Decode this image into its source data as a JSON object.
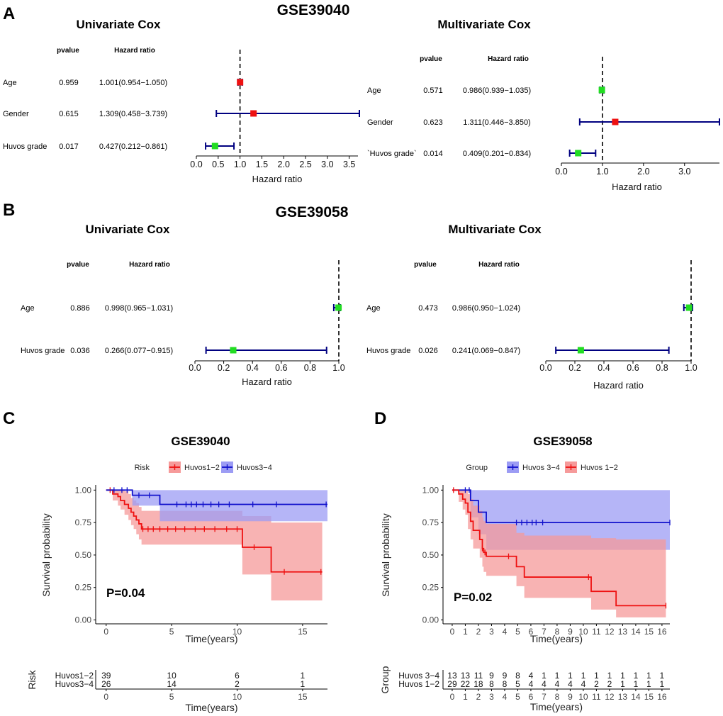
{
  "panels": {
    "A": {
      "letter": "A",
      "title": "GSE39040"
    },
    "B": {
      "letter": "B",
      "title": "GSE39058"
    },
    "C": {
      "letter": "C"
    },
    "D": {
      "letter": "D"
    }
  },
  "chart_data": [
    {
      "id": "A-uni",
      "type": "forest",
      "dataset": "GSE39040",
      "title": "Univariate Cox",
      "col_pvalue": "pvalue",
      "col_hr": "Hazard ratio",
      "xlabel": "Hazard ratio",
      "xlim": [
        0,
        3.7
      ],
      "ref_line": 1.0,
      "xticks": [
        {
          "v": 0,
          "t": "0.0"
        },
        {
          "v": 0.5,
          "t": "0.5"
        },
        {
          "v": 1,
          "t": "1.0"
        },
        {
          "v": 1.5,
          "t": "1.5"
        },
        {
          "v": 2,
          "t": "2.0"
        },
        {
          "v": 2.5,
          "t": "2.5"
        },
        {
          "v": 3,
          "t": "3.0"
        },
        {
          "v": 3.5,
          "t": "3.5"
        }
      ],
      "rows": [
        {
          "label": "Age",
          "pvalue": "0.959",
          "hr_text": "1.001(0.954−1.050)",
          "hr": 1.001,
          "lo": 0.954,
          "hi": 1.05,
          "color": "#ee1111"
        },
        {
          "label": "Gender",
          "pvalue": "0.615",
          "hr_text": "1.309(0.458−3.739)",
          "hr": 1.309,
          "lo": 0.458,
          "hi": 3.739,
          "color": "#ee1111"
        },
        {
          "label": "Huvos grade",
          "pvalue": "0.017",
          "hr_text": "0.427(0.212−0.861)",
          "hr": 0.427,
          "lo": 0.212,
          "hi": 0.861,
          "color": "#22dd22"
        }
      ]
    },
    {
      "id": "A-multi",
      "type": "forest",
      "dataset": "GSE39040",
      "title": "Multivariate Cox",
      "col_pvalue": "pvalue",
      "col_hr": "Hazard ratio",
      "xlabel": "Hazard ratio",
      "xlim": [
        0,
        3.85
      ],
      "ref_line": 1.0,
      "xticks": [
        {
          "v": 0,
          "t": "0.0"
        },
        {
          "v": 1,
          "t": "1.0"
        },
        {
          "v": 2,
          "t": "2.0"
        },
        {
          "v": 3,
          "t": "3.0"
        }
      ],
      "rows": [
        {
          "label": "Age",
          "pvalue": "0.571",
          "hr_text": "0.986(0.939−1.035)",
          "hr": 0.986,
          "lo": 0.939,
          "hi": 1.035,
          "color": "#22dd22"
        },
        {
          "label": "Gender",
          "pvalue": "0.623",
          "hr_text": "1.311(0.446−3.850)",
          "hr": 1.311,
          "lo": 0.446,
          "hi": 3.85,
          "color": "#ee1111"
        },
        {
          "label": "`Huvos grade`",
          "pvalue": "0.014",
          "hr_text": "0.409(0.201−0.834)",
          "hr": 0.409,
          "lo": 0.201,
          "hi": 0.834,
          "color": "#22dd22"
        }
      ]
    },
    {
      "id": "B-uni",
      "type": "forest",
      "dataset": "GSE39058",
      "title": "Univariate Cox",
      "col_pvalue": "pvalue",
      "col_hr": "Hazard ratio",
      "xlabel": "Hazard ratio",
      "xlim": [
        0,
        1.0
      ],
      "ref_line": 1.0,
      "xticks": [
        {
          "v": 0,
          "t": "0.0"
        },
        {
          "v": 0.2,
          "t": "0.2"
        },
        {
          "v": 0.4,
          "t": "0.4"
        },
        {
          "v": 0.6,
          "t": "0.6"
        },
        {
          "v": 0.8,
          "t": "0.8"
        },
        {
          "v": 1,
          "t": "1.0"
        }
      ],
      "rows": [
        {
          "label": "Age",
          "pvalue": "0.886",
          "hr_text": "0.998(0.965−1.031)",
          "hr": 0.998,
          "lo": 0.965,
          "hi": 1.031,
          "color": "#22dd22"
        },
        {
          "label": "Huvos grade",
          "pvalue": "0.036",
          "hr_text": "0.266(0.077−0.915)",
          "hr": 0.266,
          "lo": 0.077,
          "hi": 0.915,
          "color": "#22dd22"
        }
      ]
    },
    {
      "id": "B-multi",
      "type": "forest",
      "dataset": "GSE39058",
      "title": "Multivariate Cox",
      "col_pvalue": "pvalue",
      "col_hr": "Hazard ratio",
      "xlabel": "Hazard ratio",
      "xlim": [
        0,
        1.0
      ],
      "ref_line": 1.0,
      "xticks": [
        {
          "v": 0,
          "t": "0.0"
        },
        {
          "v": 0.2,
          "t": "0.2"
        },
        {
          "v": 0.4,
          "t": "0.4"
        },
        {
          "v": 0.6,
          "t": "0.6"
        },
        {
          "v": 0.8,
          "t": "0.8"
        },
        {
          "v": 1,
          "t": "1.0"
        }
      ],
      "rows": [
        {
          "label": "Age",
          "pvalue": "0.473",
          "hr_text": "0.986(0.950−1.024)",
          "hr": 0.986,
          "lo": 0.95,
          "hi": 1.024,
          "color": "#22dd22"
        },
        {
          "label": "Huvos grade",
          "pvalue": "0.026",
          "hr_text": "0.241(0.069−0.847)",
          "hr": 0.241,
          "lo": 0.069,
          "hi": 0.847,
          "color": "#22dd22"
        }
      ]
    },
    {
      "id": "C-km",
      "type": "line",
      "subtype": "kaplan-meier",
      "title": "GSE39040",
      "xlabel": "Time(years)",
      "ylabel": "Survival probability",
      "xlim": [
        -0.8,
        16.9
      ],
      "ylim": [
        -0.03,
        1.04
      ],
      "xticks": [
        {
          "v": 0,
          "t": "0"
        },
        {
          "v": 5,
          "t": "5"
        },
        {
          "v": 10,
          "t": "10"
        },
        {
          "v": 15,
          "t": "15"
        }
      ],
      "yticks": [
        {
          "v": 0,
          "t": "0.00"
        },
        {
          "v": 0.25,
          "t": "0.25"
        },
        {
          "v": 0.5,
          "t": "0.50"
        },
        {
          "v": 0.75,
          "t": "0.75"
        },
        {
          "v": 1,
          "t": "1.00"
        }
      ],
      "pvalue": "P=0.04",
      "legend_title": "Risk",
      "legend_position": "top",
      "series": [
        {
          "name": "Huvos1−2",
          "color": "#ee1111",
          "fill": "#f69a9a",
          "steps": [
            [
              0,
              1.0
            ],
            [
              0.5,
              0.97
            ],
            [
              0.9,
              0.95
            ],
            [
              1.1,
              0.92
            ],
            [
              1.4,
              0.89
            ],
            [
              1.7,
              0.86
            ],
            [
              1.9,
              0.83
            ],
            [
              2.1,
              0.8
            ],
            [
              2.3,
              0.77
            ],
            [
              2.5,
              0.74
            ],
            [
              2.7,
              0.7
            ],
            [
              10.4,
              0.56
            ],
            [
              12.6,
              0.37
            ],
            [
              16.5,
              0.37
            ]
          ],
          "ci": [
            [
              0,
              1.0,
              1.0
            ],
            [
              0.5,
              1.0,
              0.92
            ],
            [
              0.9,
              1.0,
              0.88
            ],
            [
              1.1,
              1.0,
              0.85
            ],
            [
              1.4,
              0.99,
              0.81
            ],
            [
              1.7,
              0.97,
              0.77
            ],
            [
              1.9,
              0.94,
              0.73
            ],
            [
              2.1,
              0.92,
              0.7
            ],
            [
              2.3,
              0.9,
              0.66
            ],
            [
              2.5,
              0.87,
              0.62
            ],
            [
              2.7,
              0.84,
              0.58
            ],
            [
              10.4,
              0.8,
              0.35
            ],
            [
              12.6,
              0.75,
              0.15
            ],
            [
              16.5,
              0.75,
              0.15
            ]
          ],
          "censor_times": [
            0.3,
            2.8,
            3.2,
            3.6,
            4.1,
            4.7,
            5.3,
            6.0,
            6.8,
            7.5,
            8.3,
            9.2,
            10.0,
            11.3,
            13.6,
            16.4
          ]
        },
        {
          "name": "Huvos3−4",
          "color": "#1111cc",
          "fill": "#9c9cf4",
          "steps": [
            [
              0,
              1.0
            ],
            [
              2.0,
              0.96
            ],
            [
              4.1,
              0.89
            ],
            [
              16.9,
              0.89
            ]
          ],
          "ci": [
            [
              0,
              1.0,
              1.0
            ],
            [
              2.0,
              1.0,
              0.88
            ],
            [
              4.1,
              1.0,
              0.76
            ],
            [
              16.9,
              1.0,
              0.76
            ]
          ],
          "censor_times": [
            0.6,
            1.2,
            1.6,
            2.5,
            3.3,
            5.4,
            6.1,
            6.5,
            6.9,
            7.4,
            8.0,
            8.6,
            9.4,
            11.2,
            13.0,
            16.8
          ]
        }
      ],
      "risk_table": {
        "title": "Risk",
        "xlabel": "Time(years)",
        "rows": [
          {
            "name": "Huvos1−2",
            "color": "#ee1111",
            "counts": [
              "39",
              "10",
              "6",
              "1"
            ]
          },
          {
            "name": "Huvos3−4",
            "color": "#1111cc",
            "counts": [
              "26",
              "14",
              "2",
              "1"
            ]
          }
        ],
        "times": [
          0,
          5,
          10,
          15
        ]
      }
    },
    {
      "id": "D-km",
      "type": "line",
      "subtype": "kaplan-meier",
      "title": "GSE39058",
      "xlabel": "Time(years)",
      "ylabel": "Survival probability",
      "xlim": [
        -0.7,
        16.6
      ],
      "ylim": [
        -0.03,
        1.04
      ],
      "xticks": [
        {
          "v": 0,
          "t": "0"
        },
        {
          "v": 1,
          "t": "1"
        },
        {
          "v": 2,
          "t": "2"
        },
        {
          "v": 3,
          "t": "3"
        },
        {
          "v": 4,
          "t": "4"
        },
        {
          "v": 5,
          "t": "5"
        },
        {
          "v": 6,
          "t": "6"
        },
        {
          "v": 7,
          "t": "7"
        },
        {
          "v": 8,
          "t": "8"
        },
        {
          "v": 9,
          "t": "9"
        },
        {
          "v": 10,
          "t": "10"
        },
        {
          "v": 11,
          "t": "11"
        },
        {
          "v": 12,
          "t": "12"
        },
        {
          "v": 13,
          "t": "13"
        },
        {
          "v": 14,
          "t": "14"
        },
        {
          "v": 15,
          "t": "15"
        },
        {
          "v": 16,
          "t": "16"
        }
      ],
      "yticks": [
        {
          "v": 0,
          "t": "0.00"
        },
        {
          "v": 0.25,
          "t": "0.25"
        },
        {
          "v": 0.5,
          "t": "0.50"
        },
        {
          "v": 0.75,
          "t": "0.75"
        },
        {
          "v": 1,
          "t": "1.00"
        }
      ],
      "pvalue": "P=0.02",
      "legend_title": "Group",
      "legend_position": "top",
      "series": [
        {
          "name": "Huvos 3−4",
          "color": "#1111cc",
          "fill": "#9c9cf4",
          "steps": [
            [
              0,
              1.0
            ],
            [
              1.4,
              0.92
            ],
            [
              2.0,
              0.83
            ],
            [
              2.6,
              0.75
            ],
            [
              16.6,
              0.75
            ]
          ],
          "ci": [
            [
              0,
              1.0,
              1.0
            ],
            [
              1.4,
              1.0,
              0.79
            ],
            [
              2.0,
              1.0,
              0.66
            ],
            [
              2.6,
              1.0,
              0.54
            ],
            [
              16.6,
              1.0,
              0.54
            ]
          ],
          "censor_times": [
            1.0,
            1.3,
            4.9,
            5.3,
            5.7,
            6.1,
            6.4,
            6.9,
            16.6
          ]
        },
        {
          "name": "Huvos 1−2",
          "color": "#ee1111",
          "fill": "#f69a9a",
          "steps": [
            [
              0,
              1.0
            ],
            [
              0.5,
              0.97
            ],
            [
              0.8,
              0.93
            ],
            [
              1.0,
              0.9
            ],
            [
              1.2,
              0.83
            ],
            [
              1.4,
              0.76
            ],
            [
              1.6,
              0.69
            ],
            [
              2.1,
              0.62
            ],
            [
              2.3,
              0.55
            ],
            [
              2.4,
              0.52
            ],
            [
              2.6,
              0.49
            ],
            [
              4.9,
              0.41
            ],
            [
              5.5,
              0.33
            ],
            [
              10.6,
              0.22
            ],
            [
              12.5,
              0.11
            ],
            [
              16.3,
              0.11
            ]
          ],
          "ci": [
            [
              0,
              1.0,
              1.0
            ],
            [
              0.5,
              1.0,
              0.91
            ],
            [
              0.8,
              1.0,
              0.85
            ],
            [
              1.0,
              1.0,
              0.81
            ],
            [
              1.2,
              0.97,
              0.7
            ],
            [
              1.4,
              0.93,
              0.62
            ],
            [
              1.6,
              0.88,
              0.55
            ],
            [
              2.1,
              0.84,
              0.48
            ],
            [
              2.3,
              0.79,
              0.41
            ],
            [
              2.4,
              0.76,
              0.37
            ],
            [
              2.6,
              0.74,
              0.34
            ],
            [
              4.9,
              0.67,
              0.26
            ],
            [
              5.5,
              0.65,
              0.17
            ],
            [
              10.6,
              0.63,
              0.08
            ],
            [
              12.5,
              0.62,
              0.02
            ],
            [
              16.3,
              0.62,
              0.02
            ]
          ],
          "censor_times": [
            0.1,
            2.3,
            2.5,
            4.3,
            10.4,
            16.3
          ]
        }
      ],
      "risk_table": {
        "title": "Group",
        "xlabel": "Time(years)",
        "rows": [
          {
            "name": "Huvos 3−4",
            "color": "#1111cc",
            "counts": [
              "13",
              "13",
              "11",
              "9",
              "9",
              "8",
              "4",
              "1",
              "1",
              "1",
              "1",
              "1",
              "1",
              "1",
              "1",
              "1",
              "1"
            ]
          },
          {
            "name": "Huvos 1−2",
            "color": "#ee1111",
            "counts": [
              "29",
              "22",
              "18",
              "8",
              "8",
              "5",
              "4",
              "4",
              "4",
              "4",
              "4",
              "2",
              "2",
              "1",
              "1",
              "1",
              "1"
            ]
          }
        ],
        "times": [
          0,
          1,
          2,
          3,
          4,
          5,
          6,
          7,
          8,
          9,
          10,
          11,
          12,
          13,
          14,
          15,
          16
        ]
      }
    }
  ]
}
